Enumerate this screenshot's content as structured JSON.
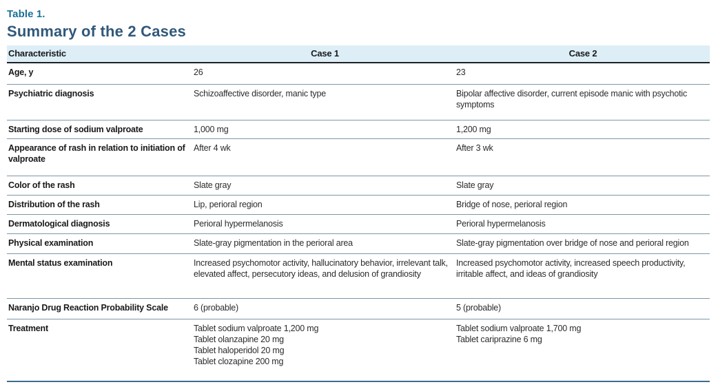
{
  "table_title": "Table 1.",
  "table_heading": "Summary of the 2 Cases",
  "columns": {
    "characteristic": "Characteristic",
    "case1": "Case 1",
    "case2": "Case 2"
  },
  "rows": [
    {
      "label": "Age, y",
      "case1": "26",
      "case2": "23"
    },
    {
      "label": "Psychiatric diagnosis",
      "case1": "Schizoaffective disorder, manic type",
      "case2": "Bipolar affective disorder, current episode manic with psychotic symptoms"
    },
    {
      "label": "Starting dose of sodium valproate",
      "case1": "1,000 mg",
      "case2": "1,200 mg"
    },
    {
      "label": "Appearance of rash in relation to initiation of valproate",
      "case1": "After 4 wk",
      "case2": "After 3 wk"
    },
    {
      "label": "Color of the rash",
      "case1": "Slate gray",
      "case2": "Slate gray"
    },
    {
      "label": "Distribution of the rash",
      "case1": "Lip, perioral region",
      "case2": "Bridge of nose, perioral region"
    },
    {
      "label": "Dermatological diagnosis",
      "case1": "Perioral hypermelanosis",
      "case2": "Perioral hypermelanosis"
    },
    {
      "label": "Physical examination",
      "case1": "Slate-gray pigmentation in the perioral area",
      "case2": "Slate-gray pigmentation over bridge of nose and perioral region"
    },
    {
      "label": "Mental status examination",
      "case1": "Increased psychomotor activity, hallucinatory behavior, irrelevant talk, elevated affect, persecutory ideas, and delusion of grandiosity",
      "case2": "Increased psychomotor activity, increased speech productivity, irritable affect, and ideas of grandiosity"
    },
    {
      "label": "Naranjo Drug Reaction Probability Scale",
      "case1": "6 (probable)",
      "case2": "5 (probable)"
    },
    {
      "label": "Treatment",
      "case1": [
        "Tablet sodium valproate 1,200 mg",
        "Tablet olanzapine 20 mg",
        "Tablet haloperidol 20 mg",
        "Tablet clozapine 200 mg"
      ],
      "case2": [
        "Tablet sodium valproate 1,700 mg",
        "Tablet cariprazine 6 mg"
      ]
    }
  ],
  "colors": {
    "title_teal": "#1a7097",
    "heading_navy": "#31587a",
    "header_bg": "#ddeef6",
    "header_text": "#16191d",
    "label_text": "#191919",
    "value_text": "#2b2b2b",
    "row_line": "#7e96a6",
    "header_line": "#1c2126",
    "bottom_line": "#3a6d90"
  }
}
